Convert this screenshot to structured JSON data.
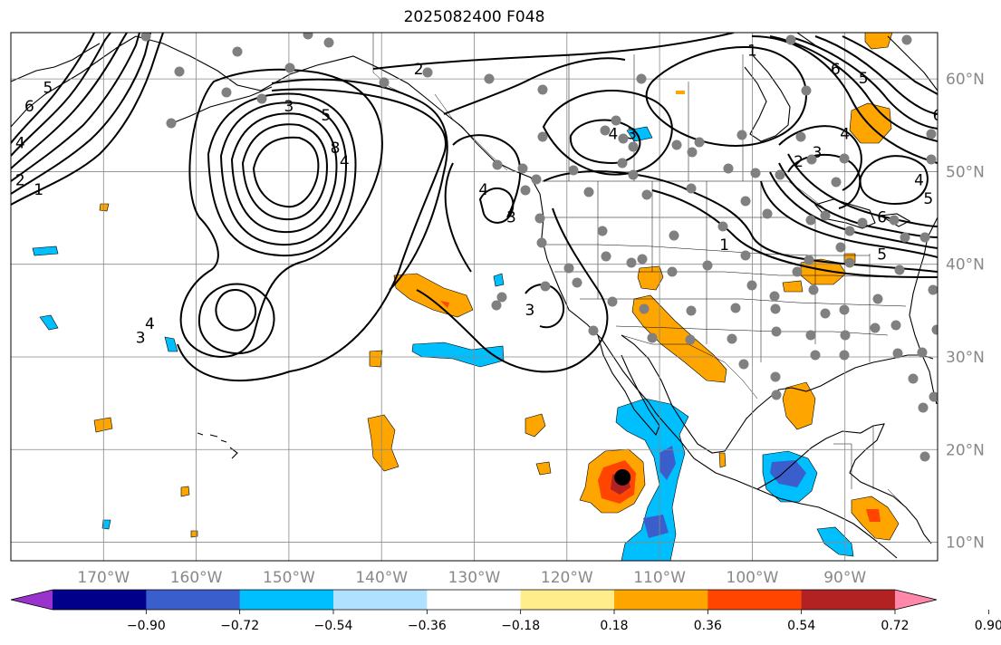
{
  "title": "2025082400 F048",
  "map": {
    "lon_range": [
      -180,
      -80
    ],
    "lat_range": [
      8,
      65
    ],
    "lon_ticks": [
      -170,
      -160,
      -150,
      -140,
      -130,
      -120,
      -110,
      -100,
      -90
    ],
    "lon_tick_labels": [
      "170°W",
      "160°W",
      "150°W",
      "140°W",
      "130°W",
      "120°W",
      "110°W",
      "100°W",
      "90°W"
    ],
    "lat_ticks": [
      10,
      20,
      30,
      40,
      50,
      60
    ],
    "lat_tick_labels": [
      "10°N",
      "20°N",
      "30°N",
      "40°N",
      "50°N",
      "60°N"
    ],
    "grid": true
  },
  "colorbar": {
    "tick_labels": [
      "−0.90",
      "−0.72",
      "−0.54",
      "−0.36",
      "−0.18",
      "0.18",
      "0.36",
      "0.54",
      "0.72",
      "0.90"
    ],
    "colors": [
      "#9a32cd",
      "#00008b",
      "#3a5fcd",
      "#00bfff",
      "#b0e2ff",
      "#ffffff",
      "#ffec8b",
      "#ffa500",
      "#ff4500",
      "#b22222",
      "#ff88aa"
    ]
  },
  "contour_labels": [
    {
      "text": "2",
      "lon": -136,
      "lat": 61
    },
    {
      "text": "3",
      "lon": -150,
      "lat": 57
    },
    {
      "text": "5",
      "lon": -146,
      "lat": 56
    },
    {
      "text": "4",
      "lon": -144,
      "lat": 51
    },
    {
      "text": "8",
      "lon": -145,
      "lat": 52.5
    },
    {
      "text": "4",
      "lon": -129,
      "lat": 48
    },
    {
      "text": "3",
      "lon": -126,
      "lat": 45
    },
    {
      "text": "3",
      "lon": -124,
      "lat": 35
    },
    {
      "text": "4",
      "lon": -165,
      "lat": 33.5
    },
    {
      "text": "3",
      "lon": -166,
      "lat": 32
    },
    {
      "text": "6",
      "lon": -178,
      "lat": 57
    },
    {
      "text": "5",
      "lon": -176,
      "lat": 59
    },
    {
      "text": "4",
      "lon": -179,
      "lat": 53
    },
    {
      "text": "2",
      "lon": -179,
      "lat": 49
    },
    {
      "text": "1",
      "lon": -177,
      "lat": 48
    },
    {
      "text": "4",
      "lon": -115,
      "lat": 54
    },
    {
      "text": "3",
      "lon": -113,
      "lat": 54
    },
    {
      "text": "1",
      "lon": -100,
      "lat": 63
    },
    {
      "text": "6",
      "lon": -91,
      "lat": 61
    },
    {
      "text": "5",
      "lon": -88,
      "lat": 60
    },
    {
      "text": "6",
      "lon": -80,
      "lat": 56
    },
    {
      "text": "4",
      "lon": -90,
      "lat": 54
    },
    {
      "text": "3",
      "lon": -93,
      "lat": 52
    },
    {
      "text": "2",
      "lon": -95,
      "lat": 51
    },
    {
      "text": "1",
      "lon": -103,
      "lat": 42
    },
    {
      "text": "4",
      "lon": -82,
      "lat": 49
    },
    {
      "text": "5",
      "lon": -81,
      "lat": 47
    },
    {
      "text": "6",
      "lon": -86,
      "lat": 45
    },
    {
      "text": "5",
      "lon": -86,
      "lat": 41
    }
  ],
  "storm_marker": {
    "lon": -114,
    "lat": 17
  }
}
